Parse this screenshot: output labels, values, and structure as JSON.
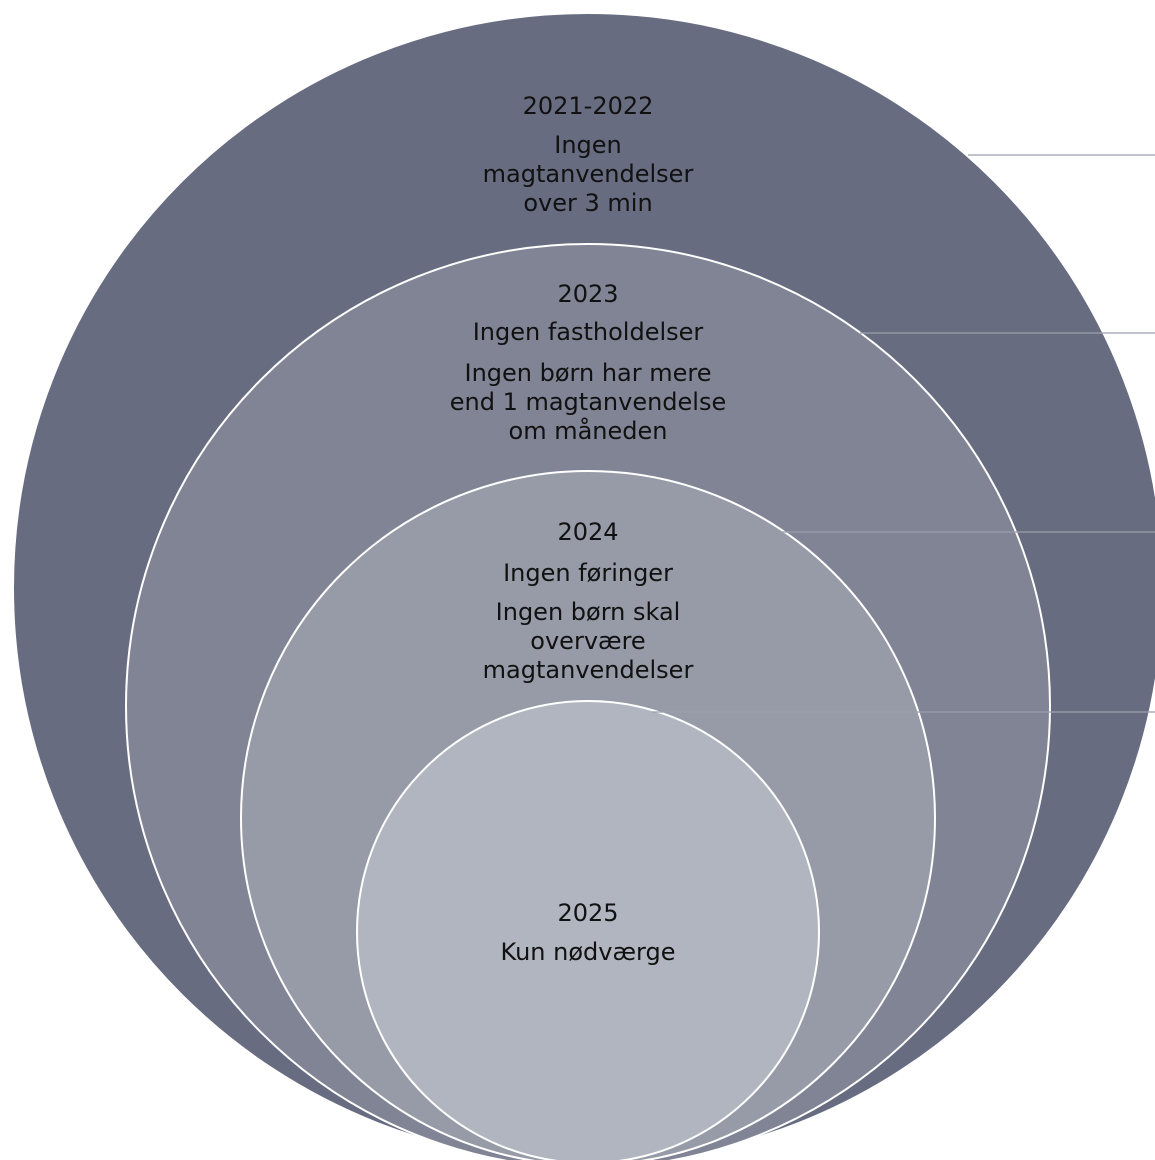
{
  "rings": [
    {
      "id": "ring-2021-2022",
      "year": "2021-2022",
      "lines": [
        "Ingen",
        "magtanvendelser",
        "over 3 min"
      ],
      "fill": "#686c80"
    },
    {
      "id": "ring-2023",
      "year": "2023",
      "lines": [
        "Ingen fastholdelser",
        "Ingen børn har mere",
        "end 1 magtanvendelse",
        "om måneden"
      ],
      "fill": "#818495"
    },
    {
      "id": "ring-2024",
      "year": "2024",
      "lines": [
        "Ingen føringer",
        "Ingen børn skal",
        "overvære",
        "magtanvendelser"
      ],
      "fill": "#979ba7"
    },
    {
      "id": "ring-2025",
      "year": "2025",
      "lines": [
        "Kun nødværge"
      ],
      "fill": "#b1b5c0"
    }
  ],
  "colors": {
    "ring_border": "#ffffff",
    "connector": "#9a9eab",
    "text": "#111111"
  }
}
